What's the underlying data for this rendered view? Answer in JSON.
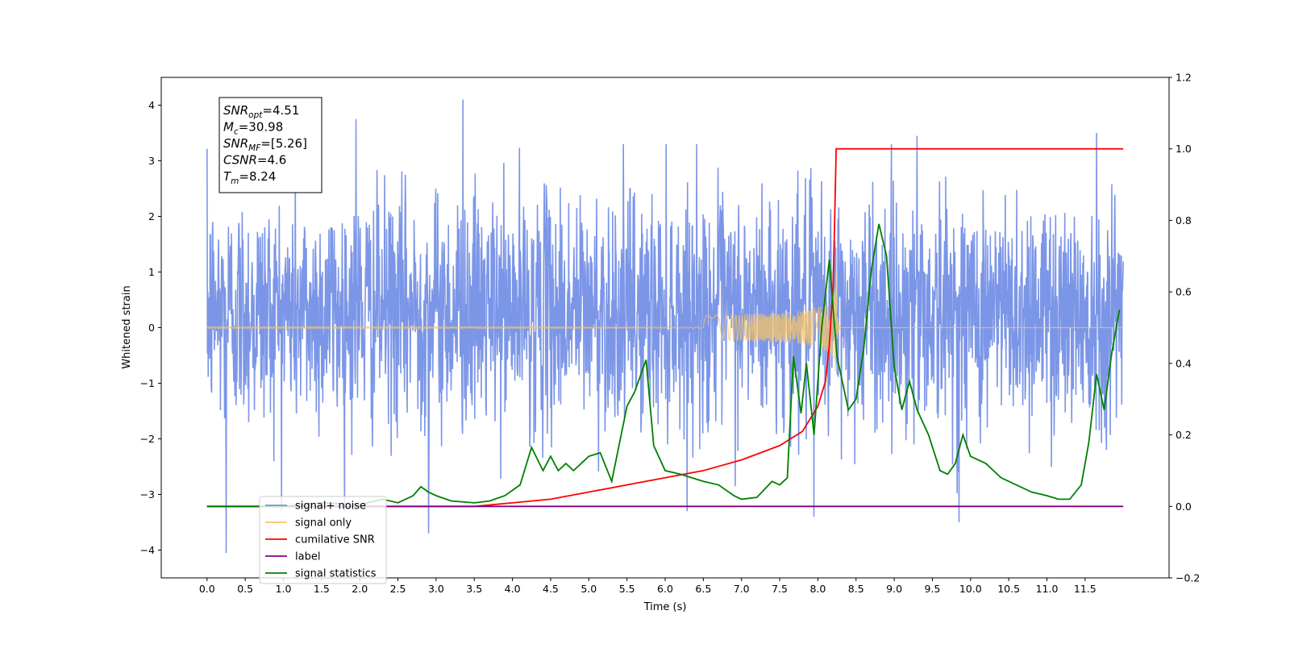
{
  "chart_data": {
    "type": "line",
    "xlabel": "Time (s)",
    "ylabel": "Whitened strain",
    "ylabel_right": "",
    "xlim": [
      -0.6,
      12.6
    ],
    "ylim": [
      -4.5,
      4.5
    ],
    "ylim_right": [
      -0.2,
      1.2
    ],
    "x_ticks": [
      "0.0",
      "0.5",
      "1.0",
      "1.5",
      "2.0",
      "2.5",
      "3.0",
      "3.5",
      "4.0",
      "4.5",
      "5.0",
      "5.5",
      "6.0",
      "6.5",
      "7.0",
      "7.5",
      "8.0",
      "8.5",
      "9.0",
      "9.5",
      "10.0",
      "10.5",
      "11.0",
      "11.5"
    ],
    "y_ticks": [
      "4",
      "3",
      "2",
      "1",
      "0",
      "−1",
      "−2",
      "−3",
      "−4"
    ],
    "y_ticks_right": [
      "1.2",
      "1.0",
      "0.8",
      "0.6",
      "0.4",
      "0.2",
      "0.0",
      "−0.2"
    ],
    "annotation": {
      "lines": [
        {
          "main": "SNR",
          "sub": "opt",
          "rest": "=4.51"
        },
        {
          "main": "M",
          "sub": "c",
          "rest": "=30.98"
        },
        {
          "main": "SNR",
          "sub": "MF",
          "rest": "=[5.26]"
        },
        {
          "main": "CSNR",
          "sub": "",
          "rest": "=4.6"
        },
        {
          "main": "T",
          "sub": "m",
          "rest": "=8.24"
        }
      ]
    },
    "legend": {
      "placement": "lower-left",
      "entries": [
        {
          "label": "signal+ noise",
          "color": "#7590e6"
        },
        {
          "label": "signal only",
          "color": "#f5c46a"
        },
        {
          "label": "cumilative SNR",
          "color": "#ff0000"
        },
        {
          "label": "label",
          "color": "#800080"
        },
        {
          "label": "signal statistics",
          "color": "#008000"
        }
      ]
    },
    "series": [
      {
        "name": "signal+ noise",
        "axis": "left",
        "color": "#7590e6",
        "kind": "noise",
        "x_range": [
          0.0,
          12.0
        ],
        "approx_std": 1.05,
        "approx_mean": 0.3,
        "peaks": [
          [
            0.25,
            -4.05
          ],
          [
            1.95,
            3.75
          ],
          [
            3.35,
            4.1
          ],
          [
            2.9,
            -3.7
          ],
          [
            9.3,
            3.45
          ],
          [
            11.65,
            3.5
          ],
          [
            7.95,
            -3.4
          ],
          [
            9.85,
            -3.5
          ]
        ]
      },
      {
        "name": "signal only",
        "axis": "left",
        "color": "#f5c46a",
        "kind": "chirp",
        "x_range": [
          0.0,
          12.0
        ],
        "merger_time": 8.24,
        "peak_amplitude": 1.0
      },
      {
        "name": "cumilative SNR",
        "axis": "right",
        "color": "#ff0000",
        "x": [
          0.0,
          3.5,
          4.0,
          4.5,
          5.0,
          5.5,
          6.0,
          6.5,
          7.0,
          7.5,
          7.8,
          8.0,
          8.1,
          8.15,
          8.2,
          8.22,
          8.24,
          8.3,
          9.0,
          10.0,
          11.0,
          12.0
        ],
        "y": [
          0.0,
          0.0,
          0.01,
          0.02,
          0.04,
          0.06,
          0.08,
          0.1,
          0.13,
          0.17,
          0.21,
          0.28,
          0.35,
          0.45,
          0.62,
          0.8,
          1.0,
          1.0,
          1.0,
          1.0,
          1.0,
          1.0
        ]
      },
      {
        "name": "label",
        "axis": "right",
        "color": "#800080",
        "x": [
          0.0,
          12.0
        ],
        "y": [
          0.0,
          0.0
        ]
      },
      {
        "name": "signal statistics",
        "axis": "right",
        "color": "#008000",
        "x": [
          0.0,
          0.5,
          1.0,
          1.5,
          2.0,
          2.3,
          2.5,
          2.7,
          2.8,
          2.9,
          3.0,
          3.2,
          3.5,
          3.7,
          3.9,
          4.1,
          4.25,
          4.4,
          4.5,
          4.6,
          4.7,
          4.8,
          5.0,
          5.15,
          5.3,
          5.5,
          5.6,
          5.75,
          5.85,
          6.0,
          6.2,
          6.5,
          6.7,
          6.9,
          7.0,
          7.2,
          7.4,
          7.5,
          7.6,
          7.68,
          7.78,
          7.85,
          7.95,
          8.05,
          8.15,
          8.25,
          8.4,
          8.5,
          8.6,
          8.7,
          8.8,
          8.9,
          9.0,
          9.1,
          9.2,
          9.3,
          9.45,
          9.6,
          9.7,
          9.8,
          9.9,
          10.0,
          10.2,
          10.4,
          10.6,
          10.8,
          11.0,
          11.15,
          11.3,
          11.45,
          11.55,
          11.65,
          11.75,
          11.85,
          11.95
        ],
        "y": [
          0.0,
          0.0,
          0.0,
          0.01,
          0.005,
          0.02,
          0.01,
          0.03,
          0.055,
          0.04,
          0.03,
          0.015,
          0.01,
          0.015,
          0.03,
          0.06,
          0.165,
          0.1,
          0.14,
          0.1,
          0.12,
          0.1,
          0.14,
          0.15,
          0.07,
          0.28,
          0.32,
          0.41,
          0.17,
          0.1,
          0.09,
          0.07,
          0.06,
          0.03,
          0.02,
          0.025,
          0.07,
          0.06,
          0.08,
          0.42,
          0.26,
          0.4,
          0.2,
          0.5,
          0.69,
          0.42,
          0.27,
          0.3,
          0.44,
          0.66,
          0.79,
          0.7,
          0.39,
          0.27,
          0.35,
          0.27,
          0.2,
          0.1,
          0.09,
          0.12,
          0.2,
          0.14,
          0.12,
          0.08,
          0.06,
          0.04,
          0.03,
          0.02,
          0.02,
          0.06,
          0.18,
          0.37,
          0.27,
          0.43,
          0.55
        ]
      }
    ]
  }
}
